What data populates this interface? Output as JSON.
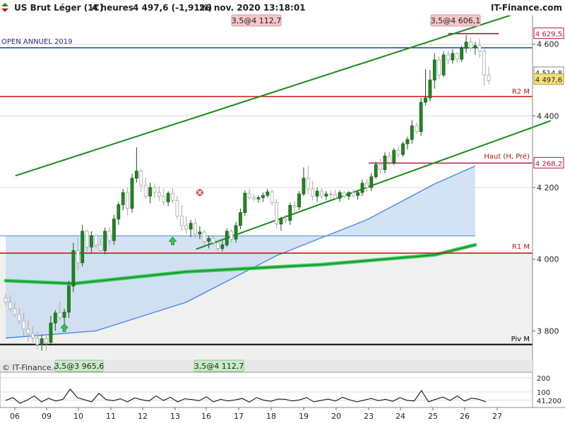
{
  "header": {
    "instrument": "US Brut Léger (1€)",
    "timeframe": "4 heures",
    "last_change": "4 497,6 (-1,91%)",
    "timestamp": "26 nov. 2020 13:18:01",
    "brand": "IT-Finance.com"
  },
  "watermark": "© IT-Finance.com",
  "colors": {
    "up_candle": "#1e8a1e",
    "down_candle": "#ffffff",
    "resistance": "#d01515",
    "trend": "#1a8a1a",
    "open_line": "#1f3fb0",
    "pivot": "#000000",
    "ma_band": "#c8dcf0",
    "ma_line": "#4a8ae0"
  },
  "chart_data": {
    "type": "candlestick",
    "x_ticks": [
      "06",
      "09",
      "10",
      "11",
      "12",
      "13",
      "16",
      "17",
      "18",
      "19",
      "20",
      "23",
      "24",
      "25",
      "26",
      "27"
    ],
    "y_ticks": [
      3800,
      4000,
      4200,
      4400,
      4600
    ],
    "y_tick_labels": [
      "3 800",
      "4 000",
      "4 200",
      "4 400",
      "4 600"
    ],
    "ylim": [
      3720,
      4680
    ],
    "grid": true,
    "candles": [
      {
        "o": 3892,
        "h": 3904,
        "l": 3872,
        "c": 3880
      },
      {
        "o": 3880,
        "h": 3900,
        "l": 3854,
        "c": 3862
      },
      {
        "o": 3862,
        "h": 3880,
        "l": 3838,
        "c": 3846
      },
      {
        "o": 3846,
        "h": 3862,
        "l": 3818,
        "c": 3828
      },
      {
        "o": 3828,
        "h": 3850,
        "l": 3786,
        "c": 3805
      },
      {
        "o": 3805,
        "h": 3830,
        "l": 3770,
        "c": 3792
      },
      {
        "o": 3792,
        "h": 3812,
        "l": 3768,
        "c": 3780
      },
      {
        "o": 3780,
        "h": 3798,
        "l": 3748,
        "c": 3762
      },
      {
        "o": 3762,
        "h": 3790,
        "l": 3745,
        "c": 3778
      },
      {
        "o": 3778,
        "h": 3786,
        "l": 3745,
        "c": 3768
      },
      {
        "o": 3768,
        "h": 3842,
        "l": 3758,
        "c": 3822
      },
      {
        "o": 3822,
        "h": 3858,
        "l": 3800,
        "c": 3850
      },
      {
        "o": 3850,
        "h": 3882,
        "l": 3830,
        "c": 3838
      },
      {
        "o": 3838,
        "h": 3862,
        "l": 3820,
        "c": 3852
      },
      {
        "o": 3852,
        "h": 3940,
        "l": 3836,
        "c": 3925
      },
      {
        "o": 3925,
        "h": 4046,
        "l": 3908,
        "c": 4024
      },
      {
        "o": 4024,
        "h": 4058,
        "l": 3968,
        "c": 3990
      },
      {
        "o": 3990,
        "h": 4096,
        "l": 3980,
        "c": 4078
      },
      {
        "o": 4078,
        "h": 4082,
        "l": 4020,
        "c": 4034
      },
      {
        "o": 4034,
        "h": 4078,
        "l": 4018,
        "c": 4066
      },
      {
        "o": 4066,
        "h": 4070,
        "l": 4032,
        "c": 4040
      },
      {
        "o": 4040,
        "h": 4058,
        "l": 4014,
        "c": 4024
      },
      {
        "o": 4024,
        "h": 4088,
        "l": 4014,
        "c": 4078
      },
      {
        "o": 4078,
        "h": 4092,
        "l": 4040,
        "c": 4052
      },
      {
        "o": 4052,
        "h": 4124,
        "l": 4040,
        "c": 4112
      },
      {
        "o": 4112,
        "h": 4160,
        "l": 4096,
        "c": 4152
      },
      {
        "o": 4152,
        "h": 4196,
        "l": 4136,
        "c": 4186
      },
      {
        "o": 4186,
        "h": 4200,
        "l": 4122,
        "c": 4142
      },
      {
        "o": 4142,
        "h": 4238,
        "l": 4130,
        "c": 4226
      },
      {
        "o": 4226,
        "h": 4312,
        "l": 4214,
        "c": 4246
      },
      {
        "o": 4246,
        "h": 4252,
        "l": 4188,
        "c": 4206
      },
      {
        "o": 4206,
        "h": 4228,
        "l": 4168,
        "c": 4176
      },
      {
        "o": 4176,
        "h": 4214,
        "l": 4156,
        "c": 4200
      },
      {
        "o": 4200,
        "h": 4212,
        "l": 4172,
        "c": 4186
      },
      {
        "o": 4186,
        "h": 4204,
        "l": 4162,
        "c": 4176
      },
      {
        "o": 4176,
        "h": 4196,
        "l": 4150,
        "c": 4160
      },
      {
        "o": 4160,
        "h": 4190,
        "l": 4148,
        "c": 4184
      },
      {
        "o": 4184,
        "h": 4198,
        "l": 4156,
        "c": 4164
      },
      {
        "o": 4164,
        "h": 4176,
        "l": 4112,
        "c": 4120
      },
      {
        "o": 4120,
        "h": 4150,
        "l": 4080,
        "c": 4094
      },
      {
        "o": 4094,
        "h": 4120,
        "l": 4070,
        "c": 4084
      },
      {
        "o": 4084,
        "h": 4110,
        "l": 4062,
        "c": 4100
      },
      {
        "o": 4100,
        "h": 4114,
        "l": 4060,
        "c": 4070
      },
      {
        "o": 4070,
        "h": 4092,
        "l": 4056,
        "c": 4076
      },
      {
        "o": 4076,
        "h": 4082,
        "l": 4040,
        "c": 4050
      },
      {
        "o": 4050,
        "h": 4066,
        "l": 4030,
        "c": 4058
      },
      {
        "o": 4058,
        "h": 4064,
        "l": 4036,
        "c": 4046
      },
      {
        "o": 4046,
        "h": 4054,
        "l": 4022,
        "c": 4030
      },
      {
        "o": 4030,
        "h": 4052,
        "l": 4022,
        "c": 4040
      },
      {
        "o": 4040,
        "h": 4086,
        "l": 4034,
        "c": 4078
      },
      {
        "o": 4078,
        "h": 4084,
        "l": 4046,
        "c": 4056
      },
      {
        "o": 4056,
        "h": 4104,
        "l": 4046,
        "c": 4094
      },
      {
        "o": 4094,
        "h": 4142,
        "l": 4084,
        "c": 4130
      },
      {
        "o": 4130,
        "h": 4192,
        "l": 4120,
        "c": 4184
      },
      {
        "o": 4184,
        "h": 4196,
        "l": 4166,
        "c": 4172
      },
      {
        "o": 4172,
        "h": 4182,
        "l": 4162,
        "c": 4168
      },
      {
        "o": 4168,
        "h": 4178,
        "l": 4158,
        "c": 4172
      },
      {
        "o": 4172,
        "h": 4186,
        "l": 4160,
        "c": 4178
      },
      {
        "o": 4178,
        "h": 4196,
        "l": 4172,
        "c": 4188
      },
      {
        "o": 4188,
        "h": 4194,
        "l": 4150,
        "c": 4158
      },
      {
        "o": 4158,
        "h": 4168,
        "l": 4086,
        "c": 4098
      },
      {
        "o": 4098,
        "h": 4118,
        "l": 4080,
        "c": 4112
      },
      {
        "o": 4112,
        "h": 4124,
        "l": 4100,
        "c": 4108
      },
      {
        "o": 4108,
        "h": 4158,
        "l": 4096,
        "c": 4150
      },
      {
        "o": 4150,
        "h": 4162,
        "l": 4128,
        "c": 4146
      },
      {
        "o": 4146,
        "h": 4190,
        "l": 4138,
        "c": 4182
      },
      {
        "o": 4182,
        "h": 4256,
        "l": 4176,
        "c": 4226
      },
      {
        "o": 4226,
        "h": 4260,
        "l": 4180,
        "c": 4196
      },
      {
        "o": 4196,
        "h": 4218,
        "l": 4164,
        "c": 4176
      },
      {
        "o": 4176,
        "h": 4200,
        "l": 4160,
        "c": 4190
      },
      {
        "o": 4190,
        "h": 4198,
        "l": 4168,
        "c": 4176
      },
      {
        "o": 4176,
        "h": 4190,
        "l": 4166,
        "c": 4182
      },
      {
        "o": 4182,
        "h": 4192,
        "l": 4166,
        "c": 4180
      },
      {
        "o": 4180,
        "h": 4194,
        "l": 4164,
        "c": 4170
      },
      {
        "o": 4170,
        "h": 4192,
        "l": 4160,
        "c": 4186
      },
      {
        "o": 4186,
        "h": 4190,
        "l": 4170,
        "c": 4176
      },
      {
        "o": 4176,
        "h": 4190,
        "l": 4166,
        "c": 4186
      },
      {
        "o": 4186,
        "h": 4196,
        "l": 4172,
        "c": 4178
      },
      {
        "o": 4178,
        "h": 4192,
        "l": 4166,
        "c": 4186
      },
      {
        "o": 4186,
        "h": 4222,
        "l": 4176,
        "c": 4212
      },
      {
        "o": 4212,
        "h": 4224,
        "l": 4188,
        "c": 4200
      },
      {
        "o": 4200,
        "h": 4240,
        "l": 4190,
        "c": 4230
      },
      {
        "o": 4230,
        "h": 4272,
        "l": 4224,
        "c": 4264
      },
      {
        "o": 4264,
        "h": 4280,
        "l": 4238,
        "c": 4250
      },
      {
        "o": 4250,
        "h": 4298,
        "l": 4240,
        "c": 4288
      },
      {
        "o": 4288,
        "h": 4300,
        "l": 4262,
        "c": 4270
      },
      {
        "o": 4270,
        "h": 4310,
        "l": 4262,
        "c": 4304
      },
      {
        "o": 4304,
        "h": 4316,
        "l": 4284,
        "c": 4292
      },
      {
        "o": 4292,
        "h": 4328,
        "l": 4286,
        "c": 4322
      },
      {
        "o": 4322,
        "h": 4342,
        "l": 4306,
        "c": 4334
      },
      {
        "o": 4334,
        "h": 4388,
        "l": 4322,
        "c": 4372
      },
      {
        "o": 4372,
        "h": 4382,
        "l": 4350,
        "c": 4356
      },
      {
        "o": 4356,
        "h": 4450,
        "l": 4344,
        "c": 4438
      },
      {
        "o": 4438,
        "h": 4530,
        "l": 4430,
        "c": 4450
      },
      {
        "o": 4450,
        "h": 4528,
        "l": 4440,
        "c": 4500
      },
      {
        "o": 4500,
        "h": 4574,
        "l": 4476,
        "c": 4556
      },
      {
        "o": 4556,
        "h": 4566,
        "l": 4502,
        "c": 4514
      },
      {
        "o": 4514,
        "h": 4580,
        "l": 4508,
        "c": 4570
      },
      {
        "o": 4570,
        "h": 4580,
        "l": 4544,
        "c": 4556
      },
      {
        "o": 4556,
        "h": 4586,
        "l": 4546,
        "c": 4574
      },
      {
        "o": 4574,
        "h": 4578,
        "l": 4548,
        "c": 4558
      },
      {
        "o": 4558,
        "h": 4596,
        "l": 4550,
        "c": 4588
      },
      {
        "o": 4588,
        "h": 4626,
        "l": 4576,
        "c": 4606
      },
      {
        "o": 4606,
        "h": 4618,
        "l": 4580,
        "c": 4590
      },
      {
        "o": 4590,
        "h": 4606,
        "l": 4570,
        "c": 4596
      },
      {
        "o": 4596,
        "h": 4615,
        "l": 4562,
        "c": 4580
      },
      {
        "o": 4580,
        "h": 4592,
        "l": 4484,
        "c": 4514
      },
      {
        "o": 4514,
        "h": 4538,
        "l": 4488,
        "c": 4498
      }
    ],
    "moving_average_blue": [
      [
        0,
        3780
      ],
      [
        20,
        3800
      ],
      [
        40,
        3880
      ],
      [
        60,
        4010
      ],
      [
        80,
        4110
      ],
      [
        95,
        4210
      ],
      [
        104,
        4260
      ]
    ],
    "moving_average_green": [
      [
        0,
        3940
      ],
      [
        15,
        3932
      ],
      [
        40,
        3965
      ],
      [
        70,
        3985
      ],
      [
        95,
        4012
      ],
      [
        104,
        4040
      ]
    ],
    "ma_long_level": 4065,
    "lines": [
      {
        "name": "OPEN ANNUEL 2019",
        "value": 4590
      },
      {
        "name": "R2 M",
        "value": 4454
      },
      {
        "name": "Haut (H, Pré)",
        "value": 4268.2
      },
      {
        "name": "R1 M",
        "value": 4017
      },
      {
        "name": "Piv M",
        "value": 3762
      }
    ],
    "trendlines": [
      {
        "from": [
          0,
          4233
        ],
        "to": [
          104,
          4650
        ]
      },
      {
        "from": [
          40,
          4028
        ],
        "to": [
          104,
          4312
        ]
      }
    ],
    "price_labels": [
      "4 629,5",
      "4 514,8",
      "4 497,6",
      "4 268,2"
    ],
    "annotations": [
      "3,5@4 112,7",
      "3,5@4 606,1",
      "3,5@3 965,6",
      "3,5@4 112,7"
    ],
    "oscillator": {
      "ticks": [
        "200",
        "100",
        "41,200"
      ],
      "values": [
        40,
        60,
        20,
        42,
        72,
        30,
        55,
        36,
        48,
        120,
        60,
        45,
        30,
        90,
        46,
        38,
        52,
        30,
        58,
        45,
        36,
        72,
        40,
        62,
        30,
        52,
        46,
        38,
        66,
        30,
        48,
        36,
        44,
        54,
        28,
        60,
        42,
        34,
        50,
        48,
        36,
        44,
        60,
        30,
        40,
        50,
        36,
        62,
        44,
        30,
        42,
        54,
        38,
        48,
        34,
        60,
        40,
        36,
        110,
        30,
        48,
        64,
        40,
        72,
        36,
        56,
        48,
        30
      ]
    }
  }
}
